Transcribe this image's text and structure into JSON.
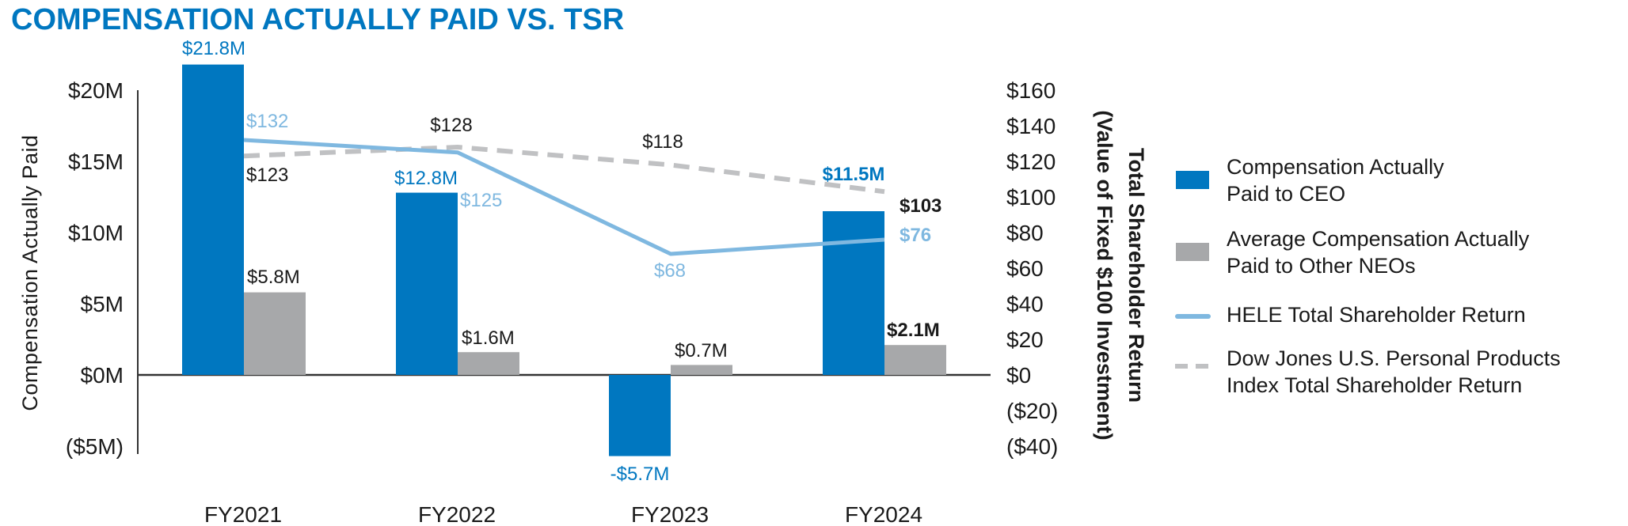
{
  "chart_data": {
    "type": "bar+line",
    "title": "COMPENSATION ACTUALLY PAID VS. TSR",
    "categories": [
      "FY2021",
      "FY2022",
      "FY2023",
      "FY2024"
    ],
    "ylabel": "Compensation Actually Paid",
    "y2label_line1": "Total Shareholder Return",
    "y2label_line2": "(Value of Fixed $100 Investment)",
    "ylim": [
      -5,
      20
    ],
    "y_ticks": [
      {
        "value": 20,
        "label": "$20M"
      },
      {
        "value": 15,
        "label": "$15M"
      },
      {
        "value": 10,
        "label": "$10M"
      },
      {
        "value": 5,
        "label": "$5M"
      },
      {
        "value": 0,
        "label": "$0M"
      },
      {
        "value": -5,
        "label": "($5M)"
      }
    ],
    "y2lim": [
      -40,
      160
    ],
    "y2_ticks": [
      {
        "value": 160,
        "label": "$160"
      },
      {
        "value": 140,
        "label": "$140"
      },
      {
        "value": 120,
        "label": "$120"
      },
      {
        "value": 100,
        "label": "$100"
      },
      {
        "value": 80,
        "label": "$80"
      },
      {
        "value": 60,
        "label": "$60"
      },
      {
        "value": 40,
        "label": "$40"
      },
      {
        "value": 20,
        "label": "$20"
      },
      {
        "value": 0,
        "label": "$0"
      },
      {
        "value": -20,
        "label": "($20)"
      },
      {
        "value": -40,
        "label": "($40)"
      }
    ],
    "grid": false,
    "legend_position": "right",
    "series": [
      {
        "name": "Compensation Actually Paid to CEO",
        "legend_lines": [
          "Compensation Actually",
          "Paid to CEO"
        ],
        "kind": "bar",
        "axis": "left",
        "color": "#0077C0",
        "values": [
          21.8,
          12.8,
          -5.7,
          11.5
        ],
        "labels": [
          "$21.8M",
          "$12.8M",
          "-$5.7M",
          "$11.5M"
        ]
      },
      {
        "name": "Average Compensation Actually Paid to Other NEOs",
        "legend_lines": [
          "Average Compensation Actually",
          "Paid to Other NEOs"
        ],
        "kind": "bar",
        "axis": "left",
        "color": "#A7A8AA",
        "values": [
          5.8,
          1.6,
          0.7,
          2.1
        ],
        "labels": [
          "$5.8M",
          "$1.6M",
          "$0.7M",
          "$2.1M"
        ]
      },
      {
        "name": "HELE Total Shareholder Return",
        "legend_lines": [
          "HELE Total Shareholder Return"
        ],
        "kind": "line",
        "axis": "right",
        "color": "#7FB8E0",
        "values": [
          132,
          125,
          68,
          76
        ],
        "labels": [
          "$132",
          "$125",
          "$68",
          "$76"
        ]
      },
      {
        "name": "Dow Jones U.S. Personal Products Index Total Shareholder Return",
        "legend_lines": [
          "Dow Jones U.S. Personal Products",
          "Index Total Shareholder Return"
        ],
        "kind": "dashed-line",
        "axis": "right",
        "color": "#C0C1C3",
        "values": [
          123,
          128,
          118,
          103
        ],
        "labels": [
          "$123",
          "$128",
          "$118",
          "$103"
        ]
      }
    ],
    "colors": {
      "title": "#0077C0",
      "text": "#1A1A1A",
      "axis": "#333333"
    }
  }
}
